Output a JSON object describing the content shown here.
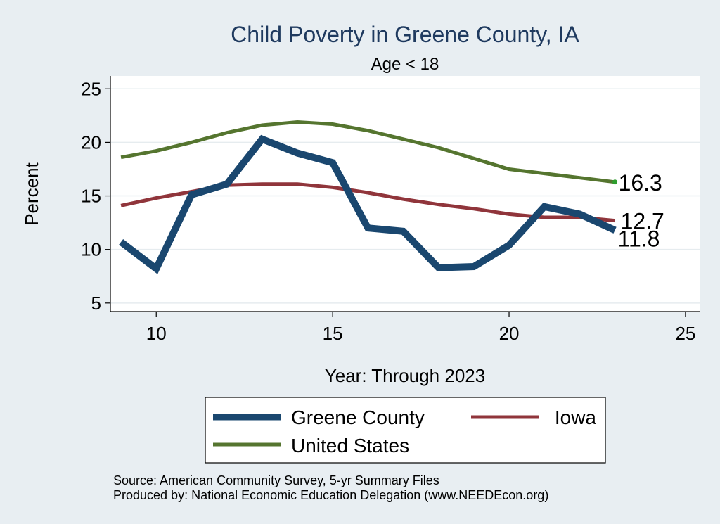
{
  "chart_data": {
    "type": "line",
    "title": "Child Poverty in Greene County, IA",
    "subtitle": "Age < 18",
    "xlabel": "Year: Through 2023",
    "ylabel": "Percent",
    "xlim": [
      8.7,
      25.4
    ],
    "ylim": [
      4.2,
      26.2
    ],
    "xticks": [
      "10",
      "15",
      "20",
      "25"
    ],
    "yticks": [
      "5",
      "10",
      "15",
      "20",
      "25"
    ],
    "grid": true,
    "legend_position": "bottom",
    "x": [
      9,
      10,
      11,
      12,
      13,
      14,
      15,
      16,
      17,
      18,
      19,
      20,
      21,
      22,
      23
    ],
    "series": [
      {
        "name": "Greene County",
        "color": "#1a476f",
        "values": [
          10.7,
          8.2,
          15.1,
          16.1,
          20.3,
          19.0,
          18.1,
          12.0,
          11.7,
          8.3,
          8.4,
          10.4,
          14.0,
          13.3,
          11.8
        ],
        "end_label": "11.8"
      },
      {
        "name": "Iowa",
        "color": "#90353b",
        "values": [
          14.1,
          14.8,
          15.4,
          16.0,
          16.1,
          16.1,
          15.8,
          15.3,
          14.7,
          14.2,
          13.8,
          13.3,
          13.0,
          13.0,
          12.7
        ],
        "end_label": "12.7"
      },
      {
        "name": "United States",
        "color": "#55752f",
        "values": [
          18.6,
          19.2,
          20.0,
          20.9,
          21.6,
          21.9,
          21.7,
          21.1,
          20.3,
          19.5,
          18.5,
          17.5,
          17.1,
          16.7,
          16.3
        ],
        "end_label": "16.3"
      }
    ]
  },
  "footer": {
    "source": "Source: American Community Survey, 5-yr Summary Files",
    "produced_by": "Produced by: National Economic Education Delegation (www.NEEDEcon.org)"
  }
}
